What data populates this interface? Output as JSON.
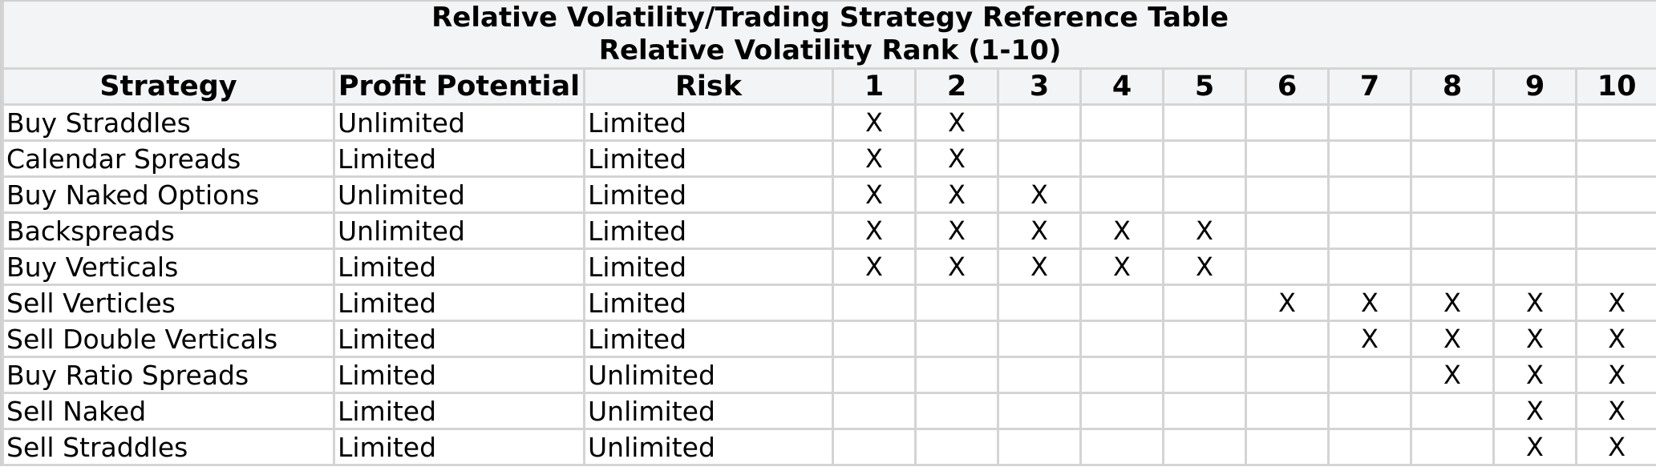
{
  "table": {
    "title": "Relative Volatility/Trading Strategy Reference Table",
    "subtitle": "Relative Volatility Rank (1-10)",
    "columns": [
      "Strategy",
      "Profit Potential",
      "Risk",
      "1",
      "2",
      "3",
      "4",
      "5",
      "6",
      "7",
      "8",
      "9",
      "10"
    ],
    "rows": [
      [
        "Buy Straddles",
        "Unlimited",
        "Limited",
        "X",
        "X",
        "",
        "",
        "",
        "",
        "",
        "",
        "",
        ""
      ],
      [
        "Calendar Spreads",
        "Limited",
        "Limited",
        "X",
        "X",
        "",
        "",
        "",
        "",
        "",
        "",
        "",
        ""
      ],
      [
        "Buy Naked Options",
        "Unlimited",
        "Limited",
        "X",
        "X",
        "X",
        "",
        "",
        "",
        "",
        "",
        "",
        ""
      ],
      [
        "Backspreads",
        "Unlimited",
        "Limited",
        "X",
        "X",
        "X",
        "X",
        "X",
        "",
        "",
        "",
        "",
        ""
      ],
      [
        "Buy Verticals",
        "Limited",
        "Limited",
        "X",
        "X",
        "X",
        "X",
        "X",
        "",
        "",
        "",
        "",
        ""
      ],
      [
        "Sell Verticles",
        "Limited",
        "Limited",
        "",
        "",
        "",
        "",
        "",
        "X",
        "X",
        "X",
        "X",
        "X"
      ],
      [
        "Sell Double Verticals",
        "Limited",
        "Limited",
        "",
        "",
        "",
        "",
        "",
        "",
        "X",
        "X",
        "X",
        "X"
      ],
      [
        "Buy Ratio Spreads",
        "Limited",
        "Unlimited",
        "",
        "",
        "",
        "",
        "",
        "",
        "",
        "X",
        "X",
        "X"
      ],
      [
        "Sell Naked",
        "Limited",
        "Unlimited",
        "",
        "",
        "",
        "",
        "",
        "",
        "",
        "",
        "X",
        "X"
      ],
      [
        "Sell Straddles",
        "Limited",
        "Unlimited",
        "",
        "",
        "",
        "",
        "",
        "",
        "",
        "",
        "X",
        "X"
      ]
    ]
  },
  "colors": {
    "header_bg": "#f3f4f6",
    "grid": "#d4d4d4",
    "text": "#000000"
  }
}
